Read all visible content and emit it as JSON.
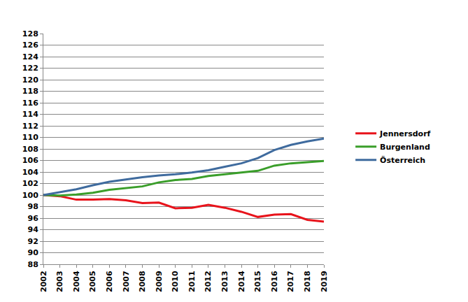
{
  "chart_data": {
    "type": "line",
    "categories": [
      "2002",
      "2003",
      "2004",
      "2005",
      "2006",
      "2007",
      "2008",
      "2009",
      "2010",
      "2011",
      "2012",
      "2013",
      "2014",
      "2015",
      "2016",
      "2017",
      "2018",
      "2019"
    ],
    "series": [
      {
        "name": "Jennersdorf",
        "color": "#e8131b",
        "values": [
          100,
          99.8,
          99.2,
          99.2,
          99.3,
          99.1,
          98.6,
          98.7,
          97.7,
          97.8,
          98.3,
          97.8,
          97.1,
          96.2,
          96.6,
          96.7,
          95.7,
          95.4
        ]
      },
      {
        "name": "Burgenland",
        "color": "#3a9e2a",
        "values": [
          100,
          99.9,
          100.1,
          100.4,
          100.9,
          101.2,
          101.5,
          102.2,
          102.6,
          102.8,
          103.3,
          103.6,
          103.9,
          104.2,
          105.1,
          105.5,
          105.7,
          105.9
        ]
      },
      {
        "name": "Österreich",
        "color": "#3f6b9e",
        "values": [
          100,
          100.5,
          101.0,
          101.7,
          102.3,
          102.7,
          103.1,
          103.4,
          103.6,
          103.9,
          104.3,
          104.9,
          105.5,
          106.4,
          107.8,
          108.7,
          109.3,
          109.8
        ]
      }
    ],
    "ylim": [
      88,
      128
    ],
    "yticks": [
      88,
      90,
      92,
      94,
      96,
      98,
      100,
      102,
      104,
      106,
      108,
      110,
      112,
      114,
      116,
      118,
      120,
      122,
      124,
      126,
      128
    ],
    "grid": true,
    "legend": "right"
  }
}
